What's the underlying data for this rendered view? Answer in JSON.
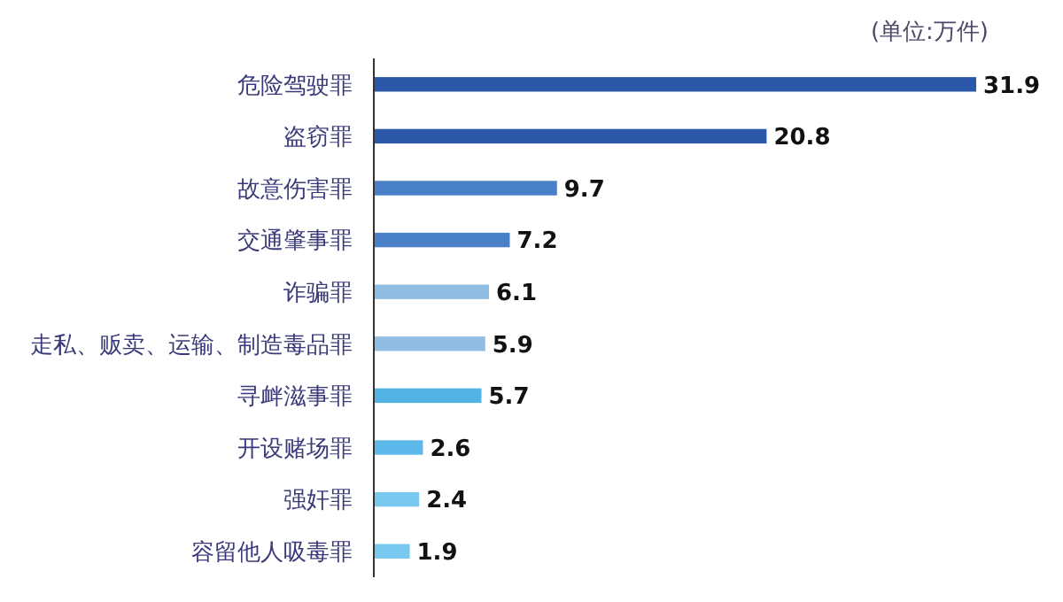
{
  "chart_data": {
    "type": "bar",
    "orientation": "horizontal",
    "annotations": [
      "(单位:万件)"
    ],
    "categories": [
      "危险驾驶罪",
      "盗窃罪",
      "故意伤害罪",
      "交通肇事罪",
      "诈骗罪",
      "走私、贩卖、运输、制造毒品罪",
      "寻衅滋事罪",
      "开设赌场罪",
      "强奸罪",
      "容留他人吸毒罪"
    ],
    "values": [
      31.9,
      20.8,
      9.7,
      7.2,
      6.1,
      5.9,
      5.7,
      2.6,
      2.4,
      1.9
    ],
    "colors": [
      "#2b58a8",
      "#2b58a8",
      "#4a80c8",
      "#4a80c8",
      "#92bde3",
      "#92bde3",
      "#52b2e4",
      "#5cb9ea",
      "#78c8ef",
      "#78c8ef"
    ],
    "data_labels": true
  }
}
